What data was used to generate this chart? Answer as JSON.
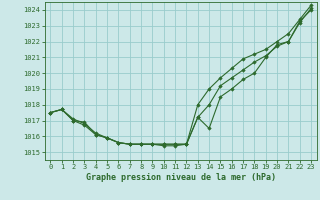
{
  "title": "Graphe pression niveau de la mer (hPa)",
  "bg_color": "#cce8e8",
  "grid_color": "#99cccc",
  "line_color": "#2d6a2d",
  "marker_color": "#2d6a2d",
  "ylim": [
    1014.5,
    1024.5
  ],
  "yticks": [
    1015,
    1016,
    1017,
    1018,
    1019,
    1020,
    1021,
    1022,
    1023,
    1024
  ],
  "xlim": [
    -0.5,
    23.5
  ],
  "xticks": [
    0,
    1,
    2,
    3,
    4,
    5,
    6,
    7,
    8,
    9,
    10,
    11,
    12,
    13,
    14,
    15,
    16,
    17,
    18,
    19,
    20,
    21,
    22,
    23
  ],
  "series": [
    [
      1017.5,
      1017.7,
      1017.0,
      1016.7,
      1016.1,
      1015.9,
      1015.6,
      1015.5,
      1015.5,
      1015.5,
      1015.4,
      1015.4,
      1015.5,
      1017.2,
      1016.5,
      1018.5,
      1019.0,
      1019.6,
      1020.0,
      1021.0,
      1021.8,
      1022.0,
      1023.3,
      1024.0
    ],
    [
      1017.5,
      1017.7,
      1017.0,
      1016.9,
      1016.1,
      1015.9,
      1015.6,
      1015.5,
      1015.5,
      1015.5,
      1015.5,
      1015.5,
      1015.5,
      1017.2,
      1018.0,
      1019.2,
      1019.7,
      1020.2,
      1020.7,
      1021.1,
      1021.7,
      1022.0,
      1023.2,
      1024.1
    ],
    [
      1017.5,
      1017.7,
      1017.1,
      1016.8,
      1016.2,
      1015.9,
      1015.6,
      1015.5,
      1015.5,
      1015.5,
      1015.5,
      1015.5,
      1015.5,
      1018.0,
      1019.0,
      1019.7,
      1020.3,
      1020.9,
      1021.2,
      1021.5,
      1022.0,
      1022.5,
      1023.4,
      1024.3
    ]
  ],
  "tick_fontsize": 5.0,
  "xlabel_fontsize": 6.0
}
